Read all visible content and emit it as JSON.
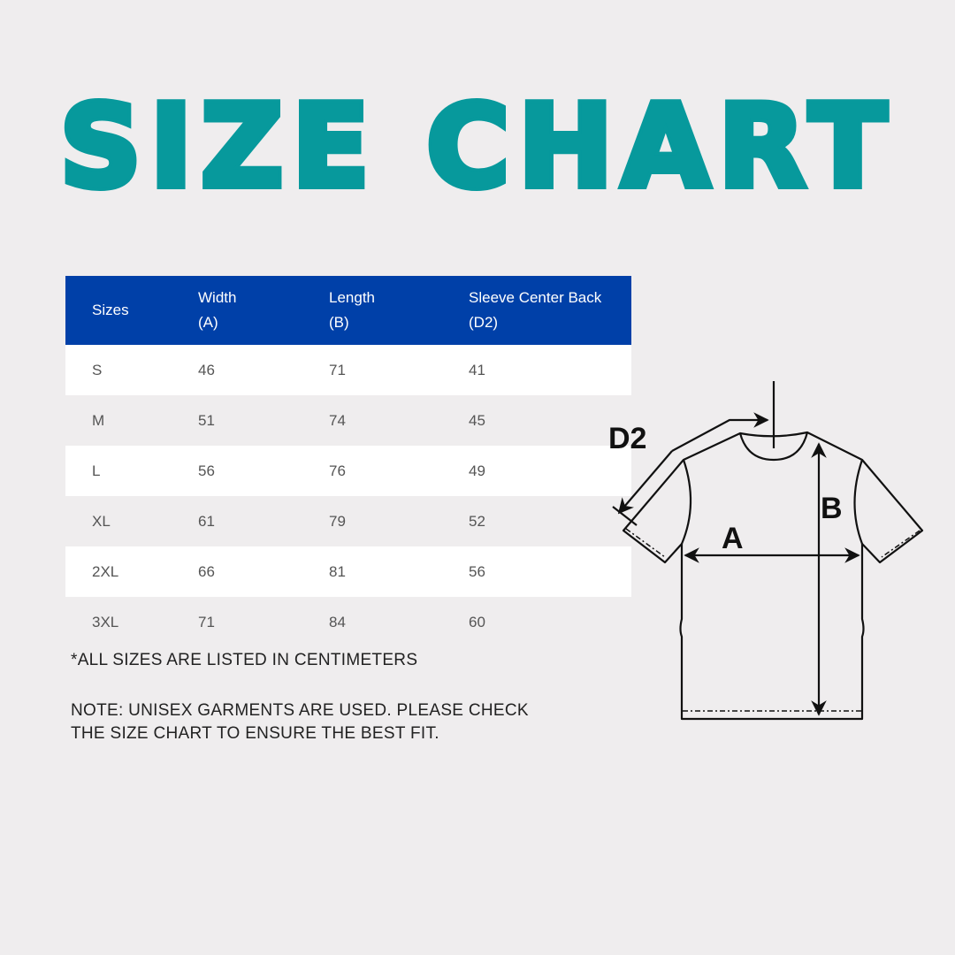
{
  "title": "SIZE CHART",
  "colors": {
    "title": "#07999c",
    "header": "#0040a8"
  },
  "table": {
    "headers": [
      [
        "Sizes",
        ""
      ],
      [
        "Width",
        "(A)"
      ],
      [
        "Length",
        "(B)"
      ],
      [
        "Sleeve Center Back",
        "(D2)"
      ]
    ],
    "rows": [
      [
        "S",
        "46",
        "71",
        "41"
      ],
      [
        "M",
        "51",
        "74",
        "45"
      ],
      [
        "L",
        "56",
        "76",
        "49"
      ],
      [
        "XL",
        "61",
        "79",
        "52"
      ],
      [
        "2XL",
        "66",
        "81",
        "56"
      ],
      [
        "3XL",
        "71",
        "84",
        "60"
      ]
    ]
  },
  "note1": "*ALL SIZES ARE LISTED IN CENTIMETERS",
  "note2_line1": "NOTE: UNISEX GARMENTS ARE USED. PLEASE CHECK",
  "note2_line2": "THE SIZE CHART TO ENSURE THE BEST FIT.",
  "diagram": {
    "label_a": "A",
    "label_b": "B",
    "label_d2": "D2"
  }
}
